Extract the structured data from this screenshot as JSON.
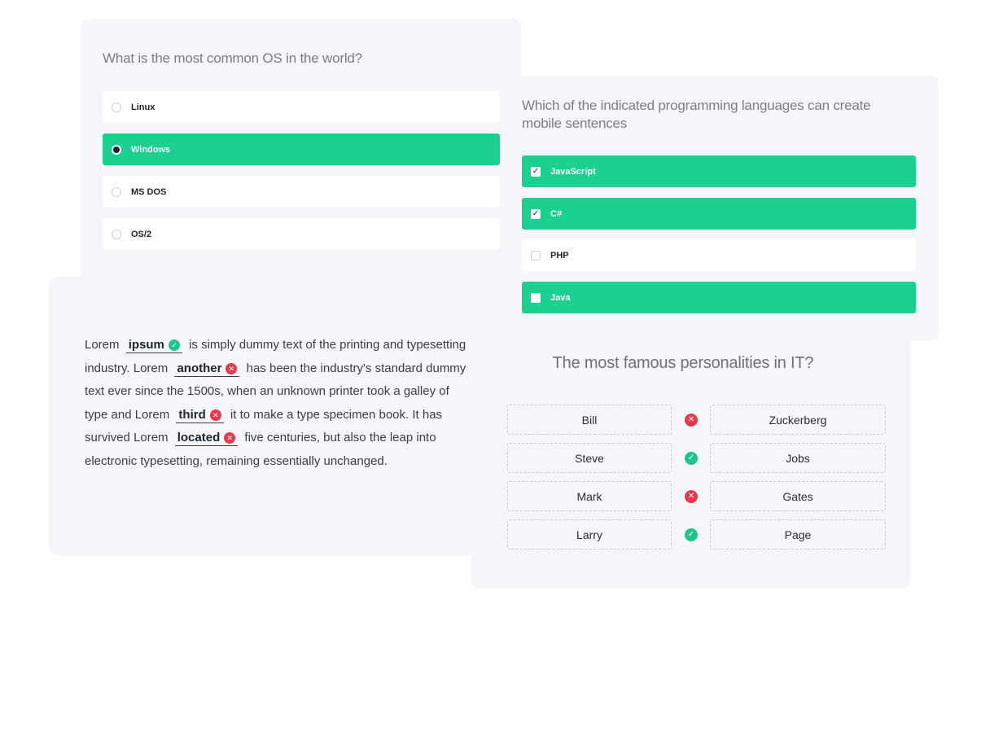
{
  "quiz_os": {
    "question": "What is the most common OS in the world?",
    "options": [
      {
        "label": "Linux",
        "selected": false
      },
      {
        "label": "Windows",
        "selected": true
      },
      {
        "label": "MS DOS",
        "selected": false
      },
      {
        "label": "OS/2",
        "selected": false
      }
    ]
  },
  "quiz_lang": {
    "question": "Which of the indicated programming languages can create mobile sentences",
    "options": [
      {
        "label": "JavaScript",
        "checked": true,
        "highlighted": true
      },
      {
        "label": "C#",
        "checked": true,
        "highlighted": true
      },
      {
        "label": "PHP",
        "checked": false,
        "highlighted": false
      },
      {
        "label": "Java",
        "checked": false,
        "highlighted": true
      }
    ]
  },
  "fill_text": {
    "t1": "Lorem",
    "b1": "ipsum",
    "t2": "is simply dummy text of the printing and typesetting industry. Lorem",
    "b2": "another",
    "t3": "has been the industry's standard dummy text ever since the 1500s, when an unknown printer took a galley of type and Lorem",
    "b3": "third",
    "t4": "it to make a type specimen book. It has survived Lorem",
    "b4": "located",
    "t5": "five centuries, but also the leap into electronic typesetting, remaining essentially unchanged.",
    "blank_status": [
      "correct",
      "wrong",
      "wrong",
      "wrong"
    ]
  },
  "matching": {
    "question": "The most famous personalities in IT?",
    "pairs": [
      {
        "left": "Bill",
        "right": "Zuckerberg",
        "status": "wrong"
      },
      {
        "left": "Steve",
        "right": "Jobs",
        "status": "correct"
      },
      {
        "left": "Mark",
        "right": "Gates",
        "status": "wrong"
      },
      {
        "left": "Larry",
        "right": "Page",
        "status": "correct"
      }
    ]
  },
  "colors": {
    "accent": "#1ad190",
    "correct": "#1ec58a",
    "wrong": "#e53a4e",
    "card_bg": "#f5f6fa"
  },
  "icons": {
    "correct": "check-circle-icon",
    "wrong": "x-circle-icon",
    "checkmark": "checkmark-icon"
  }
}
